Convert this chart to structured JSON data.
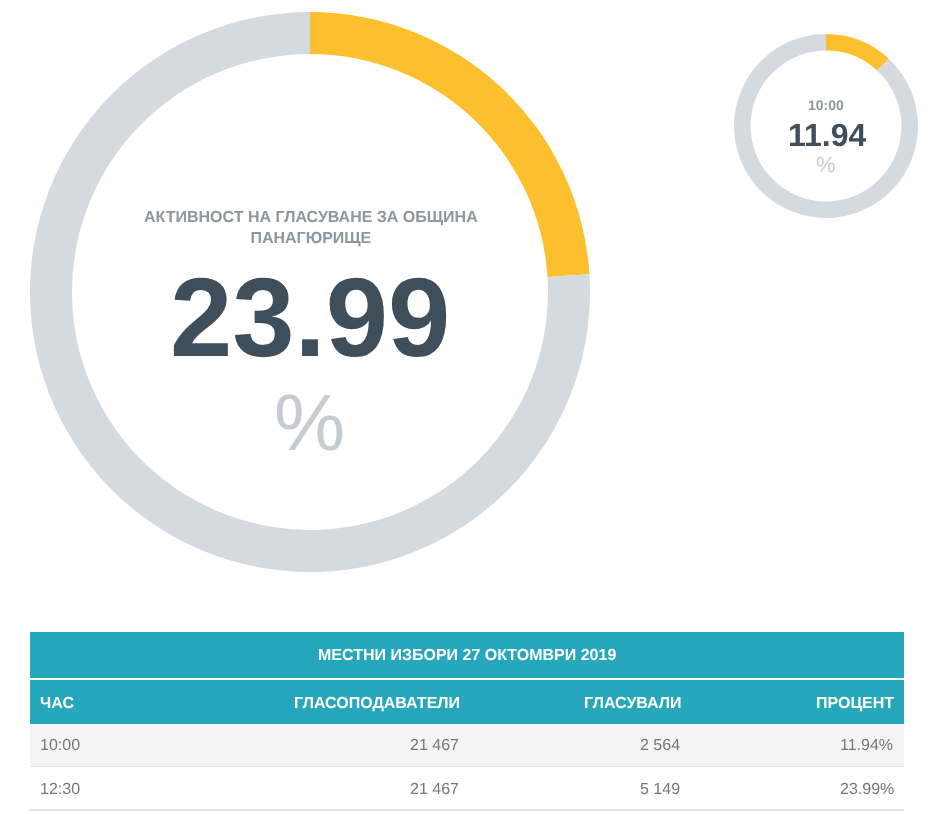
{
  "chart_data": [
    {
      "type": "donut",
      "title": "АКТИВНОСТ НА ГЛАСУВАНЕ ЗА ОБЩИНА ПАНАГЮРИЩЕ",
      "categories": [
        null,
        null
      ],
      "values": [
        23.99,
        76.01
      ],
      "colors": [
        "#fcc02e",
        "#d4dadf"
      ],
      "annotations": [
        "23.99",
        "%"
      ]
    },
    {
      "type": "donut",
      "title": "10:00",
      "categories": [
        null,
        null
      ],
      "values": [
        11.94,
        88.06
      ],
      "colors": [
        "#fcc02e",
        "#d4dadf"
      ],
      "annotations": [
        "11.94",
        "%"
      ]
    },
    {
      "type": "other",
      "title": "МЕСТНИ ИЗБОРИ 27 ОКТОМВРИ 2019",
      "xlabel": "ЧАС",
      "categories": [
        "ГЛАСОПОДАВАТЕЛИ",
        "ГЛАСУВАЛИ",
        "ПРОЦЕНТ"
      ],
      "series": [
        {
          "name": "10:00",
          "values": [
            21467,
            2564,
            11.94
          ],
          "value_labels": [
            "21 467",
            "2 564",
            "11.94%"
          ]
        },
        {
          "name": "12:30",
          "values": [
            21467,
            5149,
            23.99
          ],
          "value_labels": [
            "21 467",
            "5 149",
            "23.99%"
          ]
        }
      ]
    }
  ]
}
